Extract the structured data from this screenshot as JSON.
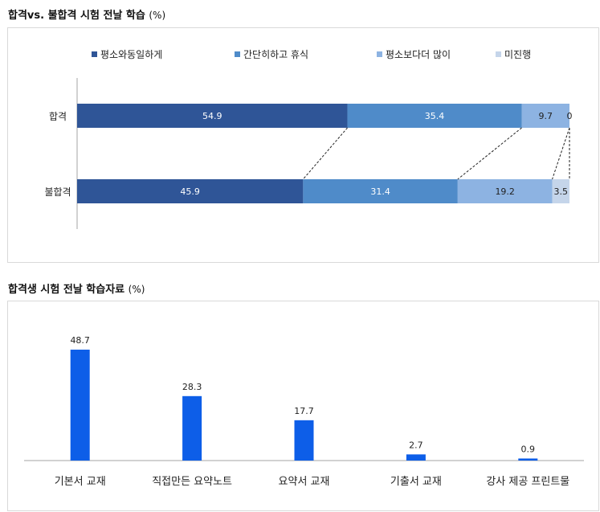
{
  "chart_data": [
    {
      "type": "bar",
      "orientation": "horizontal",
      "stacked": true,
      "title": "합격vs. 불합격 시험 전날 학습",
      "unit": "(%)",
      "categories": [
        "합격",
        "불합격"
      ],
      "legend_position": "top",
      "series": [
        {
          "name": "평소와동일하게",
          "values": [
            54.9,
            45.9
          ],
          "color": "#2f5597"
        },
        {
          "name": "간단히하고 휴식",
          "values": [
            35.4,
            31.4
          ],
          "color": "#4f8bc9"
        },
        {
          "name": "평소보다더 많이",
          "values": [
            9.7,
            19.2
          ],
          "color": "#8db3e2"
        },
        {
          "name": "미진행",
          "values": [
            0,
            3.5
          ],
          "color": "#c5d5ea"
        }
      ],
      "xlim": [
        0,
        100
      ],
      "connector_lines": true
    },
    {
      "type": "bar",
      "title": "합격생 시험 전날 학습자료",
      "unit": "(%)",
      "categories": [
        "기본서 교재",
        "직접만든 요약노트",
        "요약서 교재",
        "기출서 교재",
        "강사 제공 프린트물"
      ],
      "values": [
        48.7,
        28.3,
        17.7,
        2.7,
        0.9
      ],
      "value_labels": [
        "48.7",
        "28.3",
        "17.7",
        "2.7",
        "0.9"
      ],
      "color": "#0d5ee8",
      "ylim": [
        0,
        60
      ]
    }
  ]
}
